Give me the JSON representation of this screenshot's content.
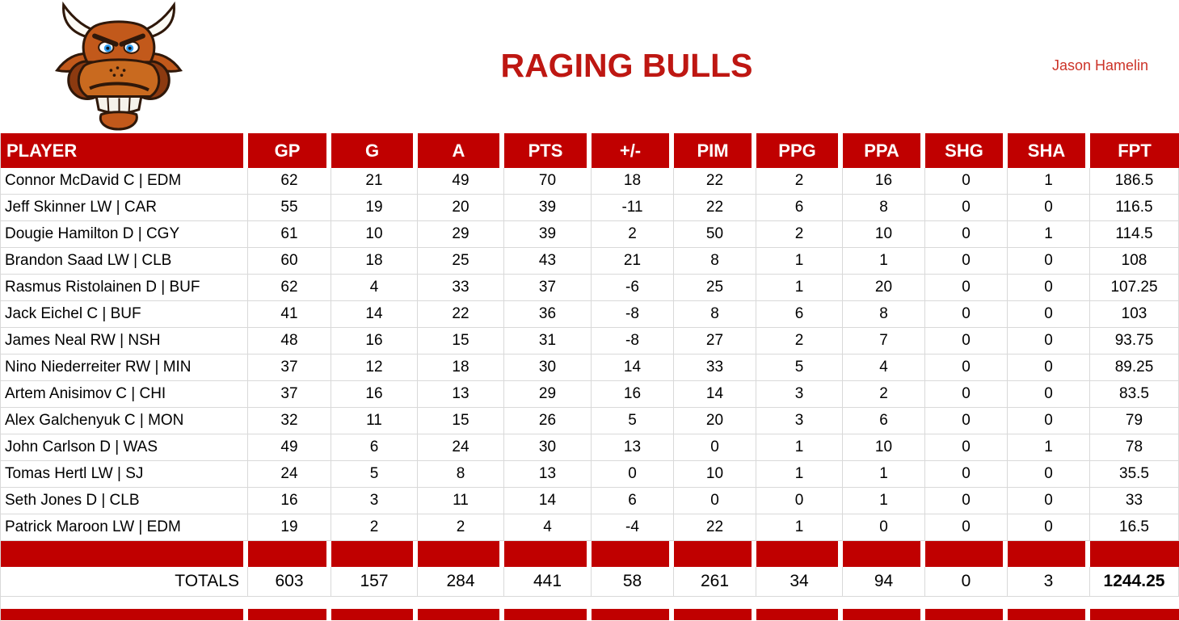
{
  "header": {
    "team_name": "RAGING BULLS",
    "manager_name": "Jason Hamelin",
    "logo": "angry-bull-head"
  },
  "colors": {
    "bar_red": "#C00000",
    "title_red": "#BE1712",
    "manager_red": "#CC3328",
    "gridline_gray": "#D9D9D9"
  },
  "table": {
    "columns": [
      "PLAYER",
      "GP",
      "G",
      "A",
      "PTS",
      "+/-",
      "PIM",
      "PPG",
      "PPA",
      "SHG",
      "SHA",
      "FPT"
    ],
    "players": [
      {
        "name": "Connor McDavid C | EDM",
        "stats": [
          "62",
          "21",
          "49",
          "70",
          "18",
          "22",
          "2",
          "16",
          "0",
          "1",
          "186.5"
        ]
      },
      {
        "name": "Jeff Skinner LW | CAR",
        "stats": [
          "55",
          "19",
          "20",
          "39",
          "-11",
          "22",
          "6",
          "8",
          "0",
          "0",
          "116.5"
        ]
      },
      {
        "name": "Dougie Hamilton D | CGY",
        "stats": [
          "61",
          "10",
          "29",
          "39",
          "2",
          "50",
          "2",
          "10",
          "0",
          "1",
          "114.5"
        ]
      },
      {
        "name": "Brandon Saad LW | CLB",
        "stats": [
          "60",
          "18",
          "25",
          "43",
          "21",
          "8",
          "1",
          "1",
          "0",
          "0",
          "108"
        ]
      },
      {
        "name": "Rasmus Ristolainen D | BUF",
        "stats": [
          "62",
          "4",
          "33",
          "37",
          "-6",
          "25",
          "1",
          "20",
          "0",
          "0",
          "107.25"
        ]
      },
      {
        "name": "Jack Eichel C | BUF",
        "stats": [
          "41",
          "14",
          "22",
          "36",
          "-8",
          "8",
          "6",
          "8",
          "0",
          "0",
          "103"
        ]
      },
      {
        "name": "James Neal RW | NSH",
        "stats": [
          "48",
          "16",
          "15",
          "31",
          "-8",
          "27",
          "2",
          "7",
          "0",
          "0",
          "93.75"
        ]
      },
      {
        "name": "Nino Niederreiter RW | MIN",
        "stats": [
          "37",
          "12",
          "18",
          "30",
          "14",
          "33",
          "5",
          "4",
          "0",
          "0",
          "89.25"
        ]
      },
      {
        "name": "Artem Anisimov C | CHI",
        "stats": [
          "37",
          "16",
          "13",
          "29",
          "16",
          "14",
          "3",
          "2",
          "0",
          "0",
          "83.5"
        ]
      },
      {
        "name": "Alex Galchenyuk C | MON",
        "stats": [
          "32",
          "11",
          "15",
          "26",
          "5",
          "20",
          "3",
          "6",
          "0",
          "0",
          "79"
        ]
      },
      {
        "name": "John Carlson D | WAS",
        "stats": [
          "49",
          "6",
          "24",
          "30",
          "13",
          "0",
          "1",
          "10",
          "0",
          "1",
          "78"
        ]
      },
      {
        "name": "Tomas Hertl LW | SJ",
        "stats": [
          "24",
          "5",
          "8",
          "13",
          "0",
          "10",
          "1",
          "1",
          "0",
          "0",
          "35.5"
        ]
      },
      {
        "name": "Seth Jones D | CLB",
        "stats": [
          "16",
          "3",
          "11",
          "14",
          "6",
          "0",
          "0",
          "1",
          "0",
          "0",
          "33"
        ]
      },
      {
        "name": "Patrick Maroon LW | EDM",
        "stats": [
          "19",
          "2",
          "2",
          "4",
          "-4",
          "22",
          "1",
          "0",
          "0",
          "0",
          "16.5"
        ]
      }
    ],
    "totals_label": "TOTALS",
    "totals": [
      "603",
      "157",
      "284",
      "441",
      "58",
      "261",
      "34",
      "94",
      "0",
      "3",
      "1244.25"
    ]
  }
}
